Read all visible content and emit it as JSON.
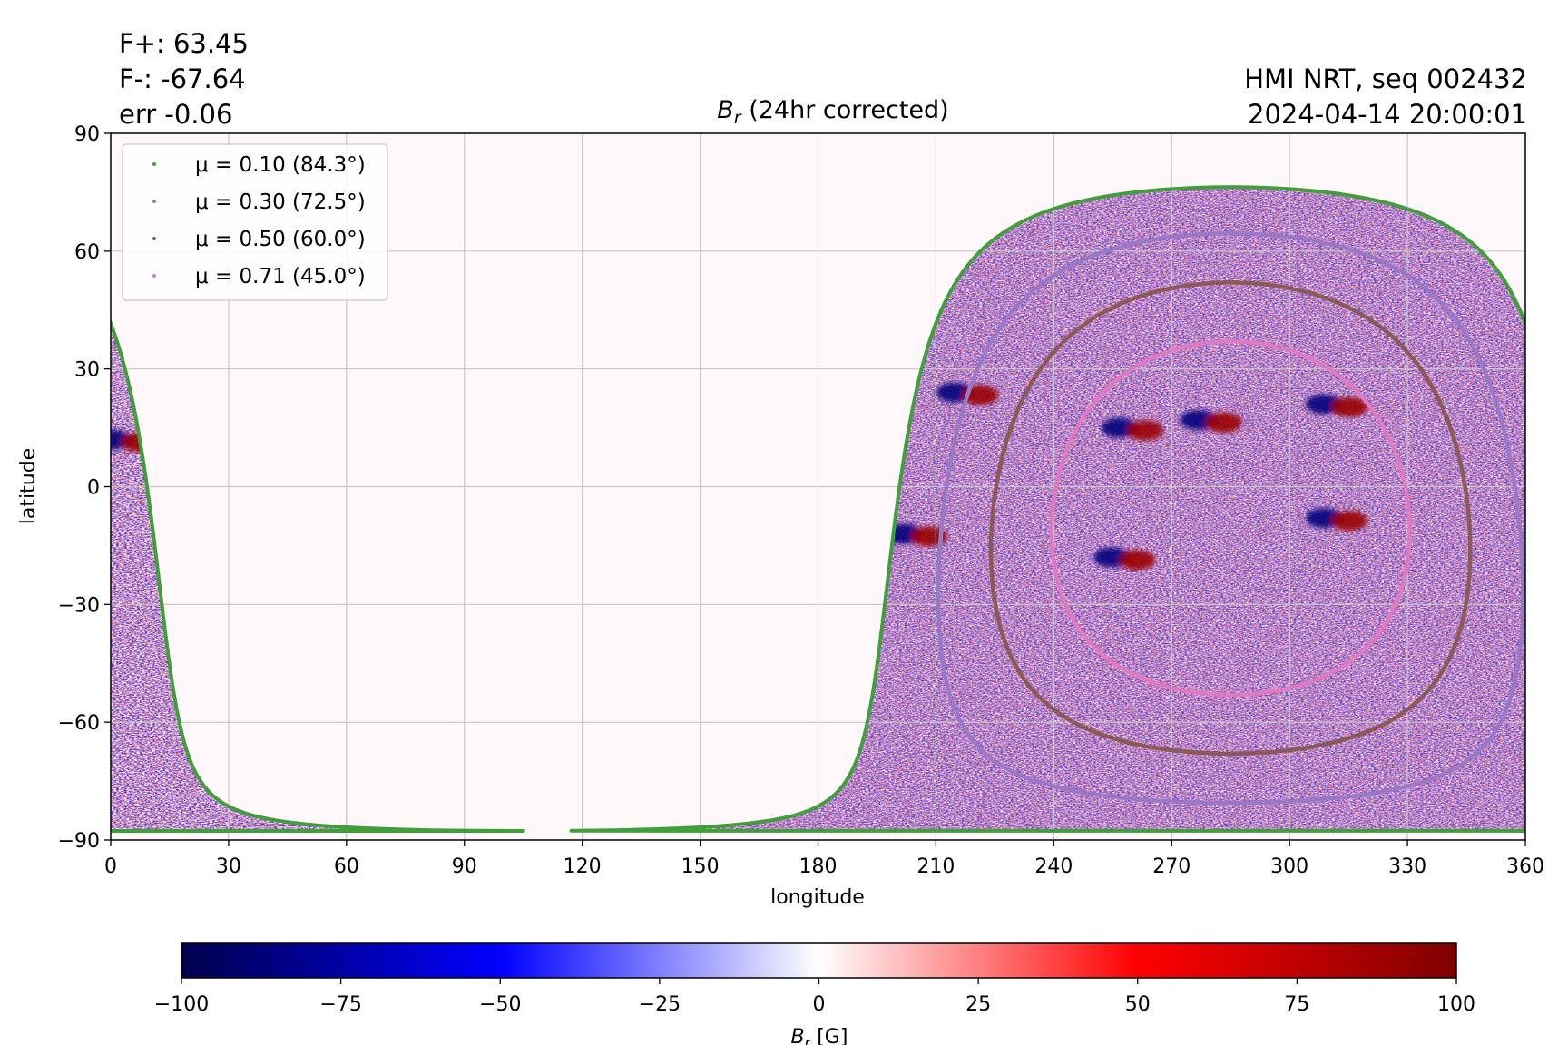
{
  "header": {
    "flux_pos": "F+: 63.45",
    "flux_neg": "F-: -67.64",
    "err": "err -0.06",
    "source": "HMI NRT, seq 002432",
    "timestamp": "2024-04-14 20:00:01"
  },
  "chart_data": [
    {
      "type": "heatmap",
      "title_main": "B",
      "title_sub": "r",
      "title_rest": " (24hr corrected)",
      "xlabel": "longitude",
      "ylabel": "latitude",
      "xlim": [
        0,
        360
      ],
      "ylim": [
        -90,
        90
      ],
      "xticks": [
        0,
        30,
        60,
        90,
        120,
        150,
        180,
        210,
        240,
        270,
        300,
        330,
        360
      ],
      "yticks": [
        90,
        60,
        30,
        0,
        -30,
        -60,
        -90
      ],
      "ytick_labels": [
        "90",
        "60",
        "30",
        "0",
        "−30",
        "−60",
        "−90"
      ],
      "grid": true,
      "legend_position": "upper-left",
      "disk_center": {
        "longitude": 285,
        "latitude": -8
      },
      "visible_range": {
        "longitude_from": 198,
        "longitude_to": 372
      },
      "series": [
        {
          "name": "μ = 0.10 (84.3°)",
          "mu": 0.1,
          "angle_deg": 84.3,
          "color": "#3fa03a"
        },
        {
          "name": "μ = 0.30 (72.5°)",
          "mu": 0.3,
          "angle_deg": 72.5,
          "color": "#9a78c8"
        },
        {
          "name": "μ = 0.50 (60.0°)",
          "mu": 0.5,
          "angle_deg": 60.0,
          "color": "#8c5a54"
        },
        {
          "name": "μ = 0.71 (45.0°)",
          "mu": 0.71,
          "angle_deg": 45.0,
          "color": "#e07ac0"
        }
      ],
      "active_regions": [
        {
          "longitude": 218,
          "latitude": 24,
          "polarity": "mixed"
        },
        {
          "longitude": 205,
          "latitude": -12,
          "polarity": "mixed"
        },
        {
          "longitude": 260,
          "latitude": 15,
          "polarity": "mixed"
        },
        {
          "longitude": 280,
          "latitude": 17,
          "polarity": "mixed"
        },
        {
          "longitude": 312,
          "latitude": 21,
          "polarity": "mixed"
        },
        {
          "longitude": 258,
          "latitude": -18,
          "polarity": "mixed"
        },
        {
          "longitude": 312,
          "latitude": -8,
          "polarity": "mixed"
        },
        {
          "longitude": 4,
          "latitude": 12,
          "polarity": "mixed"
        }
      ]
    },
    {
      "type": "colorbar",
      "label_main": "B",
      "label_sub": "r",
      "label_rest": " [G]",
      "vmin": -100,
      "vmax": 100,
      "ticks": [
        -100,
        -75,
        -50,
        -25,
        0,
        25,
        50,
        75,
        100
      ],
      "tick_labels": [
        "−100",
        "−75",
        "−50",
        "−25",
        "0",
        "25",
        "50",
        "75",
        "100"
      ],
      "colormap": [
        "#00004c",
        "#0000ff",
        "#ffffff",
        "#ff0000",
        "#7f0000"
      ]
    }
  ]
}
